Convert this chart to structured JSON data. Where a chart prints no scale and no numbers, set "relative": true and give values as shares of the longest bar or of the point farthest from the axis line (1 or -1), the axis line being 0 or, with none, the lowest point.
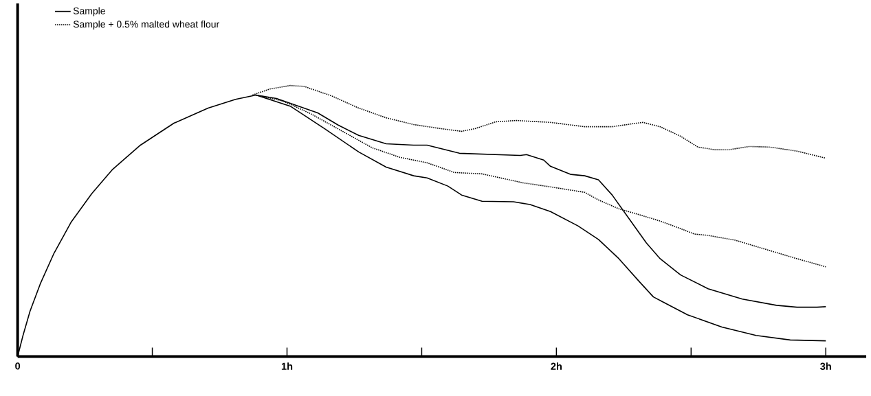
{
  "chart_data": {
    "type": "line",
    "relative": true,
    "xlim": [
      0,
      3.15
    ],
    "xticks": [
      {
        "value": 0,
        "label": "0"
      },
      {
        "value": 0.5,
        "label": null
      },
      {
        "value": 1,
        "label": "1h"
      },
      {
        "value": 1.5,
        "label": null
      },
      {
        "value": 2,
        "label": "2h"
      },
      {
        "value": 2.5,
        "label": null
      },
      {
        "value": 3,
        "label": "3h"
      }
    ],
    "legend": "top left",
    "tick_labels": "x",
    "series": [
      {
        "name": "Sample",
        "color": "#000000",
        "line_style": "solid",
        "x": [
          0,
          0.02,
          0.046,
          0.084,
          0.135,
          0.198,
          0.275,
          0.351,
          0.453,
          0.58,
          0.707,
          0.809,
          0.885,
          0.961,
          1.114,
          1.19,
          1.266,
          1.368,
          1.47,
          1.52,
          1.64,
          1.866,
          1.889,
          1.953,
          1.978,
          2.054,
          2.105,
          2.156,
          2.207,
          2.258,
          2.334,
          2.385,
          2.461,
          2.563,
          2.69,
          2.817,
          2.893,
          2.967,
          3.0
        ],
        "values": [
          0,
          0.078,
          0.167,
          0.268,
          0.381,
          0.495,
          0.601,
          0.689,
          0.778,
          0.861,
          0.917,
          0.949,
          0.965,
          0.952,
          0.899,
          0.854,
          0.816,
          0.785,
          0.78,
          0.78,
          0.75,
          0.742,
          0.745,
          0.725,
          0.702,
          0.672,
          0.667,
          0.652,
          0.596,
          0.525,
          0.419,
          0.361,
          0.301,
          0.25,
          0.212,
          0.189,
          0.182,
          0.182,
          0.184
        ]
      },
      {
        "color": "#000000",
        "line_style": "solid",
        "x": [
          0.885,
          1.012,
          1.139,
          1.266,
          1.368,
          1.47,
          1.52,
          1.597,
          1.648,
          1.724,
          1.841,
          1.902,
          1.978,
          2.08,
          2.156,
          2.232,
          2.309,
          2.36,
          2.398,
          2.487,
          2.614,
          2.741,
          2.868,
          3.0
        ],
        "values": [
          0.965,
          0.924,
          0.841,
          0.755,
          0.699,
          0.667,
          0.659,
          0.629,
          0.596,
          0.573,
          0.571,
          0.561,
          0.535,
          0.482,
          0.432,
          0.361,
          0.275,
          0.22,
          0.2,
          0.154,
          0.109,
          0.078,
          0.061,
          0.058
        ]
      },
      {
        "name": "Sample + 0.5% malted wheat flour",
        "color": "#000000",
        "line_style": "dotted",
        "x": [
          0.872,
          0.936,
          1.012,
          1.063,
          1.165,
          1.266,
          1.368,
          1.47,
          1.571,
          1.648,
          1.698,
          1.775,
          1.851,
          1.978,
          2.105,
          2.207,
          2.283,
          2.321,
          2.385,
          2.461,
          2.525,
          2.588,
          2.639,
          2.716,
          2.792,
          2.893,
          3.0
        ],
        "values": [
          0.965,
          0.987,
          1.0,
          0.997,
          0.962,
          0.917,
          0.881,
          0.856,
          0.841,
          0.831,
          0.841,
          0.866,
          0.871,
          0.864,
          0.848,
          0.848,
          0.859,
          0.864,
          0.848,
          0.813,
          0.773,
          0.763,
          0.763,
          0.775,
          0.773,
          0.758,
          0.732
        ]
      },
      {
        "color": "#000000",
        "line_style": "dotted",
        "x": [
          0.885,
          0.987,
          1.088,
          1.215,
          1.317,
          1.419,
          1.47,
          1.52,
          1.622,
          1.724,
          1.876,
          1.978,
          2.105,
          2.156,
          2.232,
          2.309,
          2.385,
          2.461,
          2.512,
          2.563,
          2.665,
          2.792,
          2.893,
          3.0
        ],
        "values": [
          0.965,
          0.942,
          0.896,
          0.826,
          0.77,
          0.735,
          0.725,
          0.715,
          0.679,
          0.674,
          0.641,
          0.626,
          0.606,
          0.578,
          0.545,
          0.523,
          0.5,
          0.472,
          0.452,
          0.447,
          0.429,
          0.391,
          0.361,
          0.331
        ]
      }
    ]
  }
}
